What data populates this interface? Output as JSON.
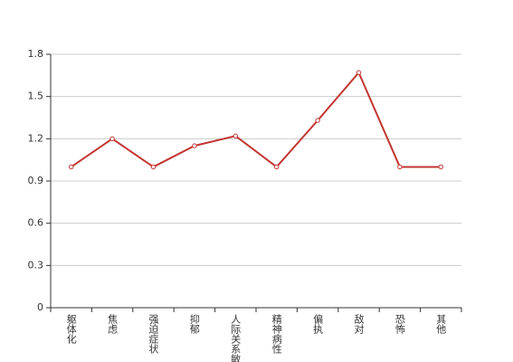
{
  "chart_data": {
    "type": "line",
    "categories": [
      "躯体化",
      "焦虑",
      "强迫症状",
      "抑郁",
      "人际关系敏感",
      "精神病性",
      "偏执",
      "敌对",
      "恐怖",
      "其他"
    ],
    "series": [
      {
        "color": "#c23531",
        "values": [
          1.0,
          1.2,
          1.0,
          1.15,
          1.22,
          1.0,
          1.33,
          1.67,
          1.0,
          1.0
        ]
      }
    ],
    "ylim": [
      0,
      1.8
    ],
    "yticks": [
      0,
      0.3,
      0.6,
      0.9,
      1.2,
      1.5,
      1.8
    ],
    "grid": true
  }
}
